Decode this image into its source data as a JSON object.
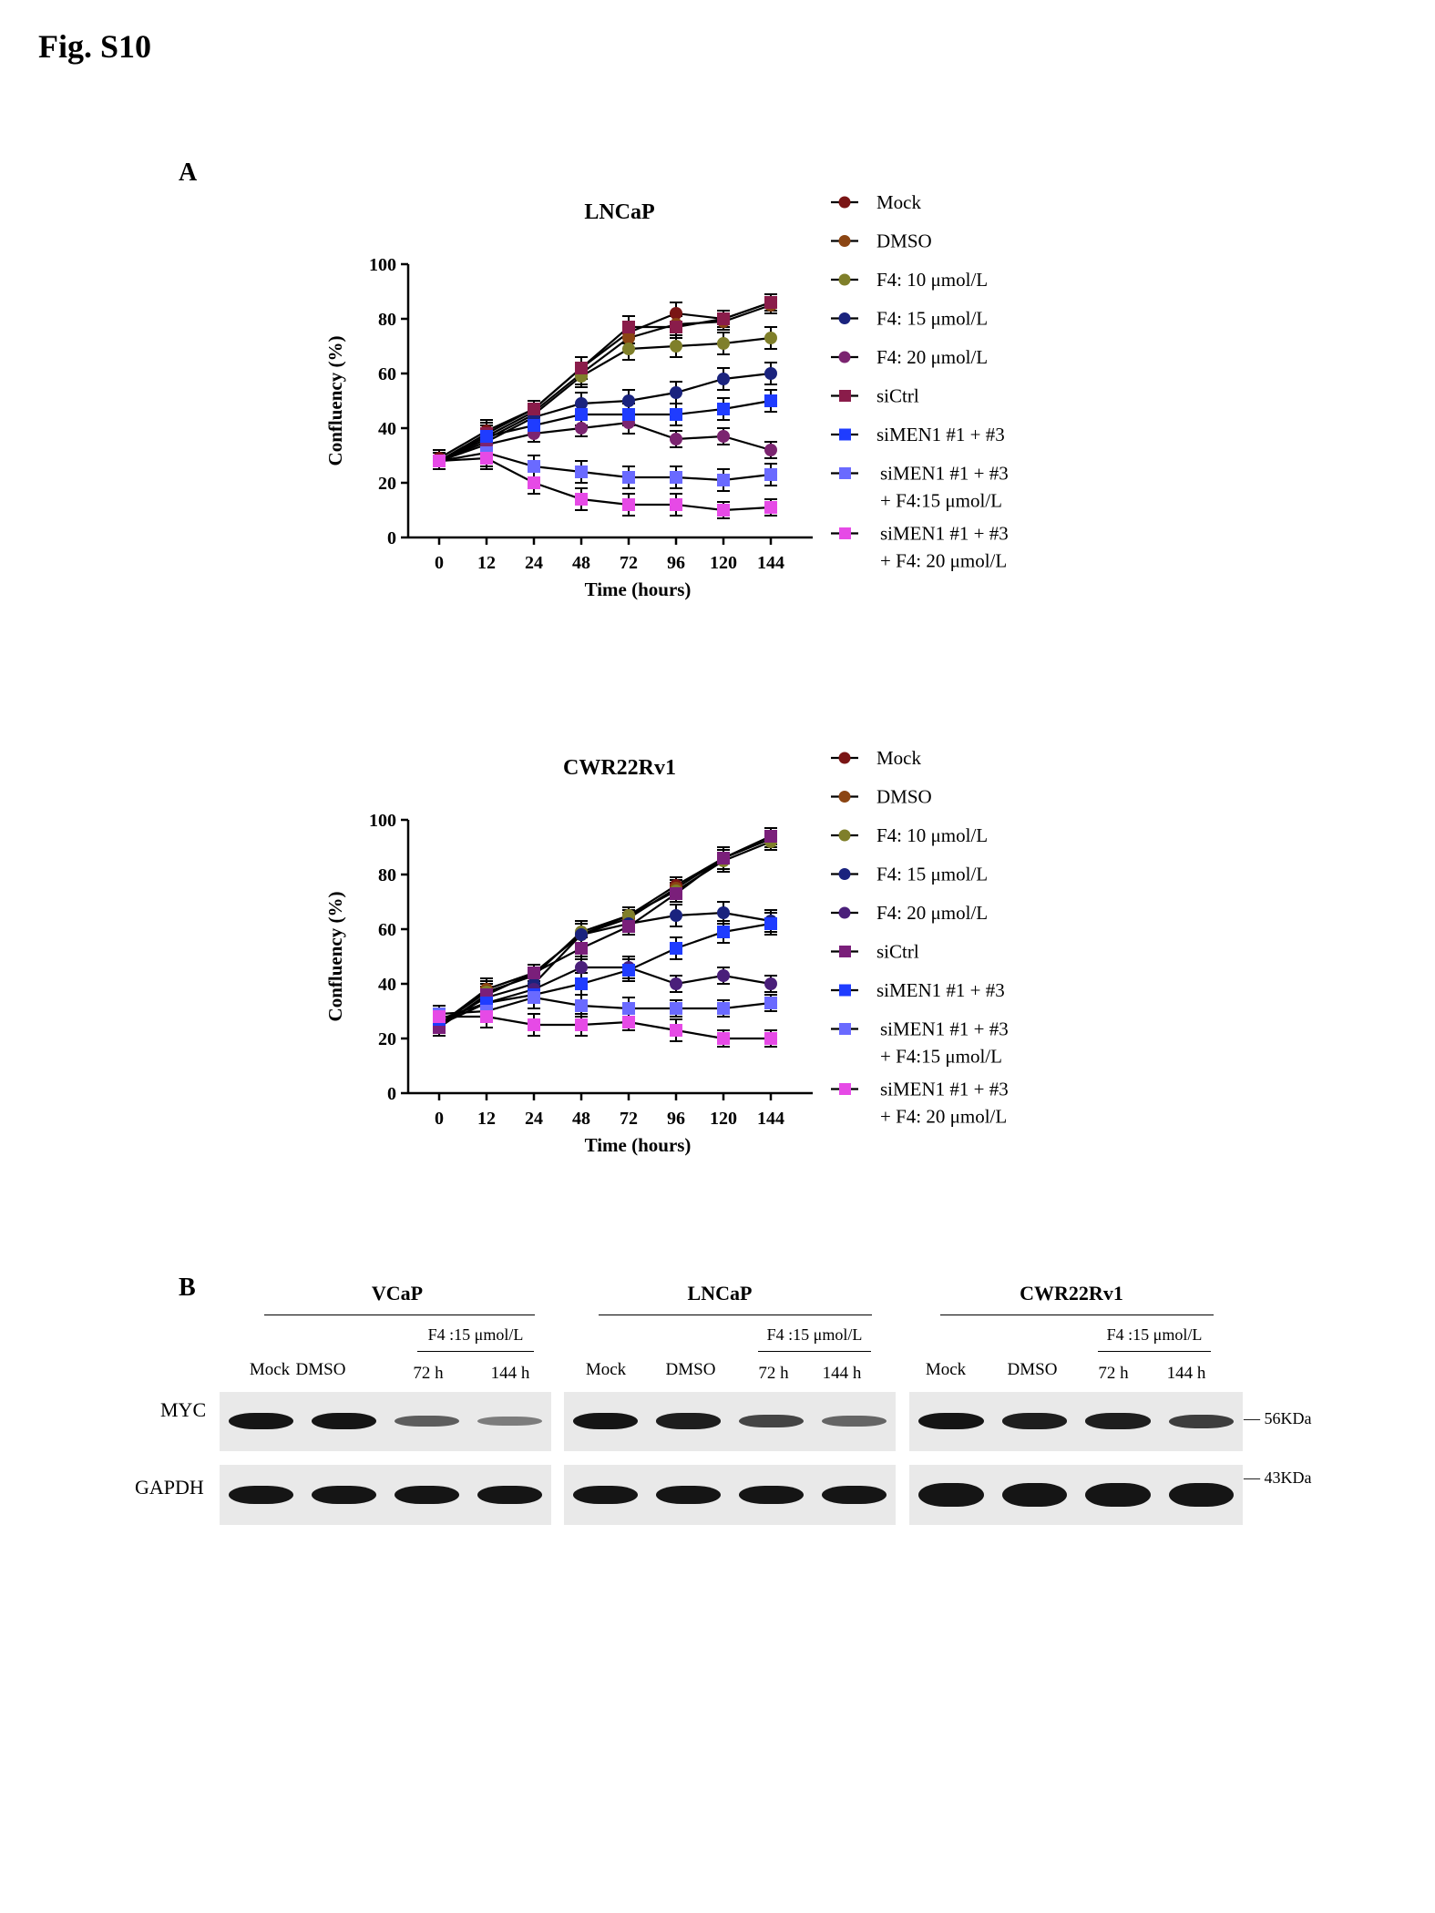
{
  "figure": {
    "title": "Fig. S10",
    "panel_a_label": "A",
    "panel_b_label": "B"
  },
  "chart_data": [
    {
      "type": "line",
      "title": "LNCaP",
      "xlabel": "Time (hours)",
      "ylabel": "Confluency (%)",
      "x": [
        0,
        12,
        24,
        48,
        72,
        96,
        120,
        144
      ],
      "x_tick_labels": [
        "0",
        "12",
        "24",
        "48",
        "72",
        "96",
        "120",
        "144"
      ],
      "ylim": [
        0,
        100
      ],
      "y_ticks": [
        0,
        20,
        40,
        60,
        80,
        100
      ],
      "grid": false,
      "legend_position": "right",
      "series": [
        {
          "name": "Mock",
          "color": "#7a1515",
          "marker": "circle",
          "values": [
            29,
            39,
            47,
            62,
            75,
            82,
            80,
            86
          ],
          "errors": [
            3,
            4,
            3,
            4,
            4,
            4,
            3,
            3
          ]
        },
        {
          "name": "DMSO",
          "color": "#8b4513",
          "marker": "circle",
          "values": [
            28,
            37,
            46,
            60,
            73,
            78,
            79,
            85
          ],
          "errors": [
            3,
            4,
            3,
            4,
            4,
            4,
            3,
            3
          ]
        },
        {
          "name": "F4: 10 μmol/L",
          "color": "#7f7f2a",
          "marker": "circle",
          "values": [
            28,
            36,
            45,
            59,
            69,
            70,
            71,
            73
          ],
          "errors": [
            3,
            4,
            3,
            4,
            4,
            4,
            4,
            4
          ]
        },
        {
          "name": "F4: 15 μmol/L",
          "color": "#1a237e",
          "marker": "circle",
          "values": [
            28,
            35,
            44,
            49,
            50,
            53,
            58,
            60
          ],
          "errors": [
            3,
            4,
            3,
            4,
            4,
            4,
            4,
            4
          ]
        },
        {
          "name": "F4: 20 μmol/L",
          "color": "#7b2470",
          "marker": "circle",
          "values": [
            28,
            34,
            38,
            40,
            42,
            36,
            37,
            32
          ],
          "errors": [
            3,
            4,
            3,
            3,
            4,
            3,
            3,
            3
          ]
        },
        {
          "name": "siCtrl",
          "color": "#8a1c4a",
          "marker": "square",
          "values": [
            28,
            38,
            47,
            62,
            77,
            77,
            80,
            86
          ],
          "errors": [
            3,
            4,
            3,
            4,
            4,
            4,
            3,
            3
          ]
        },
        {
          "name": "siMEN1 #1 + #3",
          "color": "#1f3cff",
          "marker": "square",
          "values": [
            28,
            37,
            41,
            45,
            45,
            45,
            47,
            50
          ],
          "errors": [
            3,
            4,
            3,
            4,
            4,
            4,
            4,
            4
          ]
        },
        {
          "name": "siMEN1 #1 + #3 + F4:15 μmol/L",
          "color": "#6a6aff",
          "marker": "square",
          "values": [
            28,
            31,
            26,
            24,
            22,
            22,
            21,
            23
          ],
          "errors": [
            3,
            5,
            4,
            4,
            4,
            4,
            4,
            4
          ]
        },
        {
          "name": "siMEN1 #1 + #3 + F4: 20 μmol/L",
          "color": "#e64ae6",
          "marker": "square",
          "values": [
            28,
            29,
            20,
            14,
            12,
            12,
            10,
            11
          ],
          "errors": [
            3,
            4,
            4,
            4,
            4,
            4,
            3,
            3
          ]
        }
      ]
    },
    {
      "type": "line",
      "title": "CWR22Rv1",
      "xlabel": "Time (hours)",
      "ylabel": "Confluency (%)",
      "x": [
        0,
        12,
        24,
        48,
        72,
        96,
        120,
        144
      ],
      "x_tick_labels": [
        "0",
        "12",
        "24",
        "48",
        "72",
        "96",
        "120",
        "144"
      ],
      "ylim": [
        0,
        100
      ],
      "y_ticks": [
        0,
        20,
        40,
        60,
        80,
        100
      ],
      "grid": false,
      "legend_position": "right",
      "series": [
        {
          "name": "Mock",
          "color": "#7a1515",
          "marker": "circle",
          "values": [
            25,
            38,
            44,
            58,
            65,
            76,
            86,
            94
          ],
          "errors": [
            3,
            4,
            3,
            4,
            3,
            3,
            4,
            3
          ]
        },
        {
          "name": "DMSO",
          "color": "#8b4513",
          "marker": "circle",
          "values": [
            25,
            38,
            44,
            58,
            64,
            75,
            86,
            93
          ],
          "errors": [
            3,
            4,
            3,
            4,
            3,
            3,
            4,
            3
          ]
        },
        {
          "name": "F4: 10 μmol/L",
          "color": "#7f7f2a",
          "marker": "circle",
          "values": [
            25,
            37,
            43,
            59,
            65,
            74,
            85,
            92
          ],
          "errors": [
            3,
            4,
            3,
            4,
            3,
            3,
            4,
            3
          ]
        },
        {
          "name": "F4: 15 μmol/L",
          "color": "#1a237e",
          "marker": "circle",
          "values": [
            25,
            35,
            40,
            58,
            62,
            65,
            66,
            63
          ],
          "errors": [
            3,
            4,
            3,
            4,
            4,
            4,
            4,
            4
          ]
        },
        {
          "name": "F4: 20 μmol/L",
          "color": "#4a1f7a",
          "marker": "circle",
          "values": [
            25,
            33,
            38,
            46,
            46,
            40,
            43,
            40
          ],
          "errors": [
            3,
            4,
            3,
            4,
            4,
            3,
            3,
            3
          ]
        },
        {
          "name": "siCtrl",
          "color": "#7a1f7a",
          "marker": "square",
          "values": [
            24,
            36,
            44,
            53,
            61,
            73,
            86,
            94
          ],
          "errors": [
            3,
            4,
            3,
            4,
            3,
            3,
            4,
            3
          ]
        },
        {
          "name": "siMEN1 #1 + #3",
          "color": "#1f3cff",
          "marker": "square",
          "values": [
            27,
            33,
            36,
            40,
            45,
            53,
            59,
            62
          ],
          "errors": [
            3,
            4,
            3,
            4,
            4,
            4,
            4,
            4
          ]
        },
        {
          "name": "siMEN1 #1 + #3 + F4:15 μmol/L",
          "color": "#6a6aff",
          "marker": "square",
          "values": [
            29,
            30,
            35,
            32,
            31,
            31,
            31,
            33
          ],
          "errors": [
            3,
            4,
            4,
            4,
            4,
            3,
            3,
            3
          ]
        },
        {
          "name": "siMEN1 #1 + #3 + F4: 20 μmol/L",
          "color": "#e64ae6",
          "marker": "square",
          "values": [
            28,
            28,
            25,
            25,
            26,
            23,
            20,
            20
          ],
          "errors": [
            3,
            4,
            4,
            4,
            3,
            4,
            3,
            3
          ]
        }
      ]
    }
  ],
  "western_blot": {
    "row_labels": {
      "myc": "MYC",
      "gapdh": "GAPDH"
    },
    "mw_markers": {
      "myc": "56KDa",
      "gapdh": "43KDa"
    },
    "treatment_header": "F4 :15 μmol/L",
    "lanes": [
      "Mock",
      "DMSO",
      "72 h",
      "144 h"
    ],
    "panels": [
      {
        "cell_line": "VCaP",
        "myc_intensity": [
          1.0,
          1.0,
          0.55,
          0.35
        ],
        "gapdh_intensity": [
          1.0,
          1.0,
          1.0,
          1.0
        ]
      },
      {
        "cell_line": "LNCaP",
        "myc_intensity": [
          1.0,
          0.95,
          0.7,
          0.5
        ],
        "gapdh_intensity": [
          1.0,
          1.0,
          1.0,
          1.0
        ]
      },
      {
        "cell_line": "CWR22Rv1",
        "myc_intensity": [
          1.0,
          0.95,
          0.95,
          0.75
        ],
        "gapdh_intensity": [
          1.0,
          1.0,
          1.0,
          1.0
        ]
      }
    ]
  }
}
